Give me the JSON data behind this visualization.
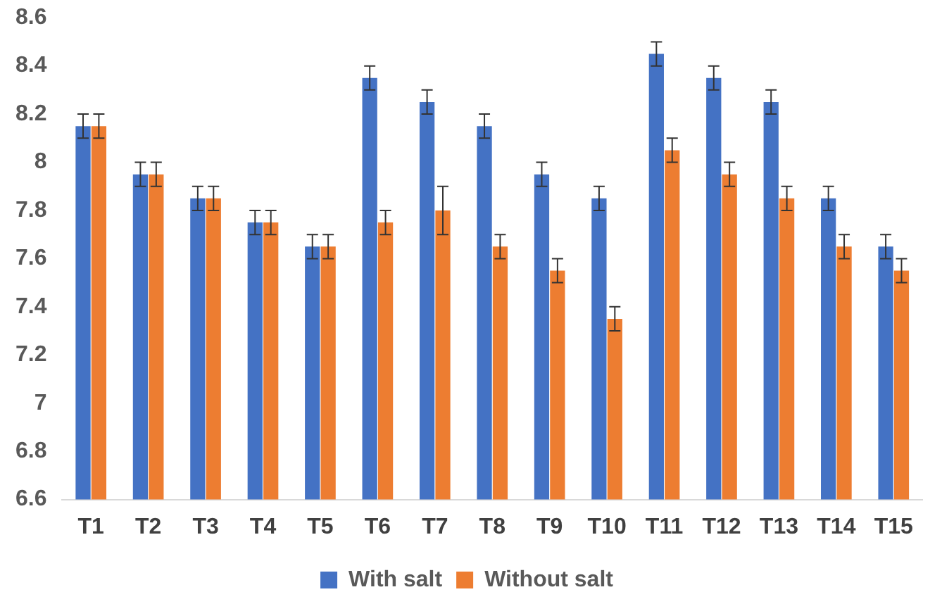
{
  "chart_data": {
    "type": "bar",
    "categories": [
      "T1",
      "T2",
      "T3",
      "T4",
      "T5",
      "T6",
      "T7",
      "T8",
      "T9",
      "T10",
      "T11",
      "T12",
      "T13",
      "T14",
      "T15"
    ],
    "series": [
      {
        "name": "With salt",
        "color": "#4472c4",
        "values": [
          8.15,
          7.95,
          7.85,
          7.75,
          7.65,
          8.35,
          8.25,
          8.15,
          7.95,
          7.85,
          8.45,
          8.35,
          8.25,
          7.85,
          7.65
        ],
        "errors": [
          0.05,
          0.05,
          0.05,
          0.05,
          0.05,
          0.05,
          0.05,
          0.05,
          0.05,
          0.05,
          0.05,
          0.05,
          0.05,
          0.05,
          0.05
        ]
      },
      {
        "name": "Without salt",
        "color": "#ed7d31",
        "values": [
          8.15,
          7.95,
          7.85,
          7.75,
          7.65,
          7.75,
          7.8,
          7.65,
          7.55,
          7.35,
          8.05,
          7.95,
          7.85,
          7.65,
          7.55
        ],
        "errors": [
          0.05,
          0.05,
          0.05,
          0.05,
          0.05,
          0.05,
          0.1,
          0.05,
          0.05,
          0.05,
          0.05,
          0.05,
          0.05,
          0.05,
          0.05
        ]
      }
    ],
    "ylim": [
      6.6,
      8.6
    ],
    "yticks": [
      6.6,
      6.8,
      7,
      7.2,
      7.4,
      7.6,
      7.8,
      8,
      8.2,
      8.4,
      8.6
    ],
    "grid": false,
    "legend": "bottom"
  }
}
